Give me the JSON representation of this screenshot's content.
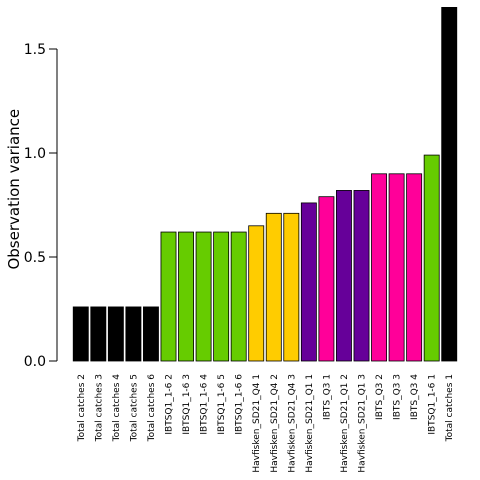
{
  "chart_data": {
    "type": "bar",
    "title": "",
    "xlabel": "",
    "ylabel": "Observation variance",
    "ylim": [
      0,
      1.7
    ],
    "yticks": [
      0.0,
      0.5,
      1.0,
      1.5
    ],
    "ytick_labels": [
      "0.0",
      "0.5",
      "1.0",
      "1.5"
    ],
    "grid": false,
    "categories": [
      "Total catches 2",
      "Total catches 3",
      "Total catches 4",
      "Total catches 5",
      "Total catches 6",
      "IBTSQ1_1-6 2",
      "IBTSQ1_1-6 3",
      "IBTSQ1_1-6 4",
      "IBTSQ1_1-6 5",
      "IBTSQ1_1-6 6",
      "Havfisken_SD21_Q4 1",
      "Havfisken_SD21_Q4 2",
      "Havfisken_SD21_Q4 3",
      "Havfisken_SD21_Q1 1",
      "IBTS_Q3 1",
      "Havfisken_SD21_Q1 2",
      "Havfisken_SD21_Q1 3",
      "IBTS_Q3 2",
      "IBTS_Q3 3",
      "IBTS_Q3 4",
      "IBTSQ1_1-6 1",
      "Total catches 1"
    ],
    "values": [
      0.26,
      0.26,
      0.26,
      0.26,
      0.26,
      0.62,
      0.62,
      0.62,
      0.62,
      0.62,
      0.65,
      0.71,
      0.71,
      0.76,
      0.79,
      0.82,
      0.82,
      0.9,
      0.9,
      0.9,
      0.99,
      1.7
    ],
    "colors": [
      "#000000",
      "#000000",
      "#000000",
      "#000000",
      "#000000",
      "#66cc00",
      "#66cc00",
      "#66cc00",
      "#66cc00",
      "#66cc00",
      "#ffcc00",
      "#ffcc00",
      "#ffcc00",
      "#660099",
      "#ff0099",
      "#660099",
      "#660099",
      "#ff0099",
      "#ff0099",
      "#ff0099",
      "#66cc00",
      "#000000"
    ]
  }
}
